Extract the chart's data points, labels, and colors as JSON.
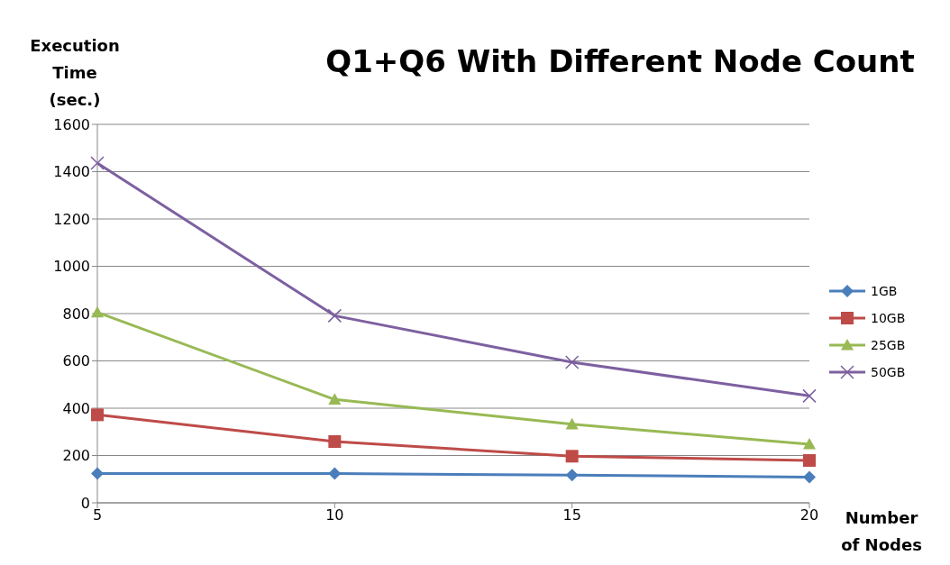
{
  "chart_data": {
    "type": "line",
    "title": "Q1+Q6 With Different Node Count",
    "ylabel": "Execution Time (sec.)",
    "xlabel": "Number of Nodes",
    "categories": [
      "5",
      "10",
      "15",
      "20"
    ],
    "series": [
      {
        "name": "1GB",
        "color": "#4a7ebb",
        "marker": "diamond",
        "values": [
          124,
          124,
          117,
          109
        ]
      },
      {
        "name": "10GB",
        "color": "#be4b48",
        "marker": "square",
        "values": [
          372,
          259,
          197,
          179
        ]
      },
      {
        "name": "25GB",
        "color": "#98b954",
        "marker": "triangle",
        "values": [
          805,
          437,
          332,
          248
        ]
      },
      {
        "name": "50GB",
        "color": "#7d60a0",
        "marker": "cross",
        "values": [
          1436,
          791,
          594,
          452
        ]
      }
    ],
    "ylim": [
      0,
      1600
    ],
    "yticks": [
      0,
      200,
      400,
      600,
      800,
      1000,
      1200,
      1400,
      1600
    ],
    "grid": "y",
    "legend": "right"
  }
}
